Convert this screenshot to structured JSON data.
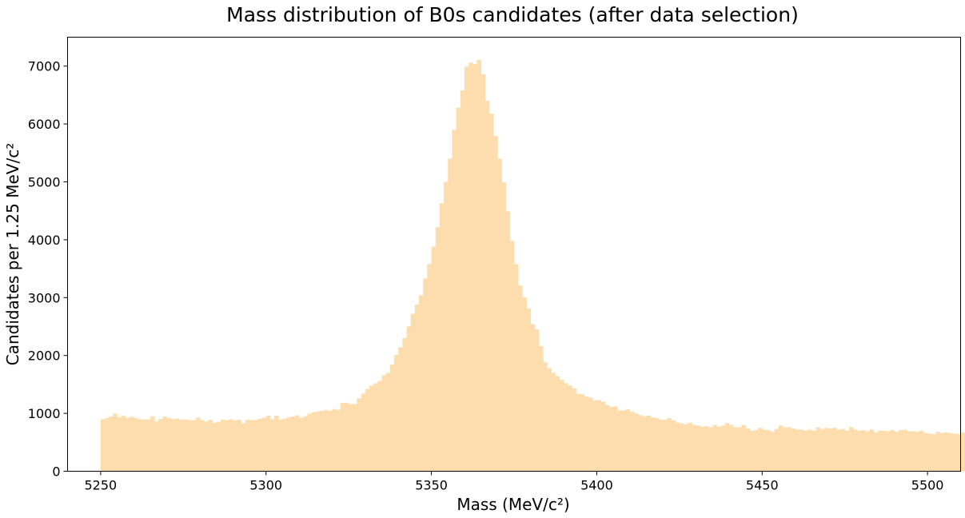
{
  "chart_data": {
    "type": "bar",
    "title": "Mass distribution of B0s candidates (after data selection)",
    "xlabel": "Mass (MeV/c²)",
    "ylabel": "Candidates per 1.25 MeV/c²",
    "xlim": [
      5240,
      5510
    ],
    "ylim": [
      0,
      7500
    ],
    "xticks": [
      5250,
      5300,
      5350,
      5400,
      5450,
      5500
    ],
    "yticks": [
      0,
      1000,
      2000,
      3000,
      4000,
      5000,
      6000,
      7000
    ],
    "grid": false,
    "bar_color": "#fdddae",
    "bin_start": 5250,
    "bin_width": 1.25,
    "values": [
      900,
      920,
      945,
      995,
      935,
      955,
      920,
      945,
      920,
      900,
      895,
      895,
      945,
      860,
      900,
      945,
      920,
      900,
      910,
      890,
      895,
      885,
      880,
      930,
      885,
      860,
      890,
      840,
      855,
      890,
      880,
      900,
      880,
      890,
      830,
      890,
      885,
      885,
      910,
      925,
      960,
      900,
      960,
      890,
      910,
      930,
      945,
      965,
      925,
      950,
      995,
      1020,
      1030,
      1040,
      1060,
      1045,
      1075,
      1060,
      1180,
      1180,
      1160,
      1160,
      1260,
      1340,
      1420,
      1480,
      1520,
      1560,
      1660,
      1700,
      1840,
      2010,
      2140,
      2300,
      2500,
      2720,
      2880,
      3040,
      3330,
      3580,
      3880,
      4220,
      4630,
      5000,
      5400,
      5900,
      6280,
      6580,
      6990,
      7060,
      7040,
      7110,
      6860,
      6400,
      6180,
      5790,
      5400,
      4990,
      4490,
      3980,
      3580,
      3210,
      3000,
      2810,
      2540,
      2450,
      2160,
      1880,
      1780,
      1700,
      1640,
      1580,
      1520,
      1480,
      1430,
      1340,
      1330,
      1290,
      1270,
      1220,
      1230,
      1200,
      1140,
      1110,
      1120,
      1050,
      1050,
      1070,
      1030,
      1000,
      970,
      950,
      960,
      930,
      920,
      890,
      890,
      920,
      880,
      840,
      830,
      810,
      840,
      800,
      790,
      770,
      780,
      760,
      800,
      770,
      790,
      830,
      800,
      760,
      760,
      800,
      740,
      700,
      710,
      750,
      720,
      710,
      680,
      730,
      790,
      760,
      760,
      740,
      720,
      720,
      700,
      720,
      700,
      760,
      730,
      750,
      740,
      750,
      720,
      730,
      700,
      760,
      720,
      700,
      710,
      690,
      720,
      670,
      700,
      700,
      690,
      710,
      680,
      710,
      720,
      690,
      690,
      680,
      700,
      660,
      650,
      640,
      680,
      660,
      670,
      660,
      650,
      640,
      670,
      630
    ]
  }
}
